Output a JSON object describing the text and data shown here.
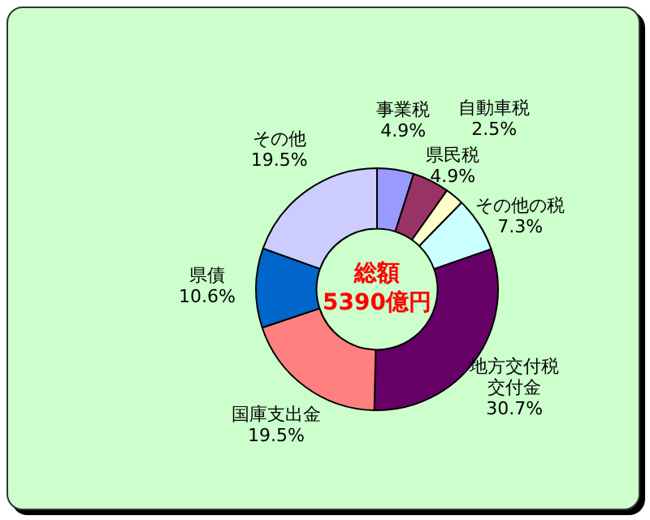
{
  "chart_data": {
    "type": "donut",
    "categories": [
      "事業税",
      "県民税",
      "自動車税",
      "その他の税",
      "地方交付税交付金",
      "国庫支出金",
      "県債",
      "その他"
    ],
    "values": [
      4.9,
      4.9,
      2.5,
      7.3,
      30.7,
      19.5,
      10.6,
      19.5
    ],
    "colors": [
      "#9999ff",
      "#993366",
      "#ffffcc",
      "#ccffff",
      "#660066",
      "#ff8080",
      "#0066cc",
      "#ccccff"
    ],
    "value_labels": [
      "4.9%",
      "4.9%",
      "2.5%",
      "7.3%",
      "30.7%",
      "19.5%",
      "10.6%",
      "19.5%"
    ],
    "annotations": [
      "総額\n5390億円"
    ],
    "legend": false
  }
}
